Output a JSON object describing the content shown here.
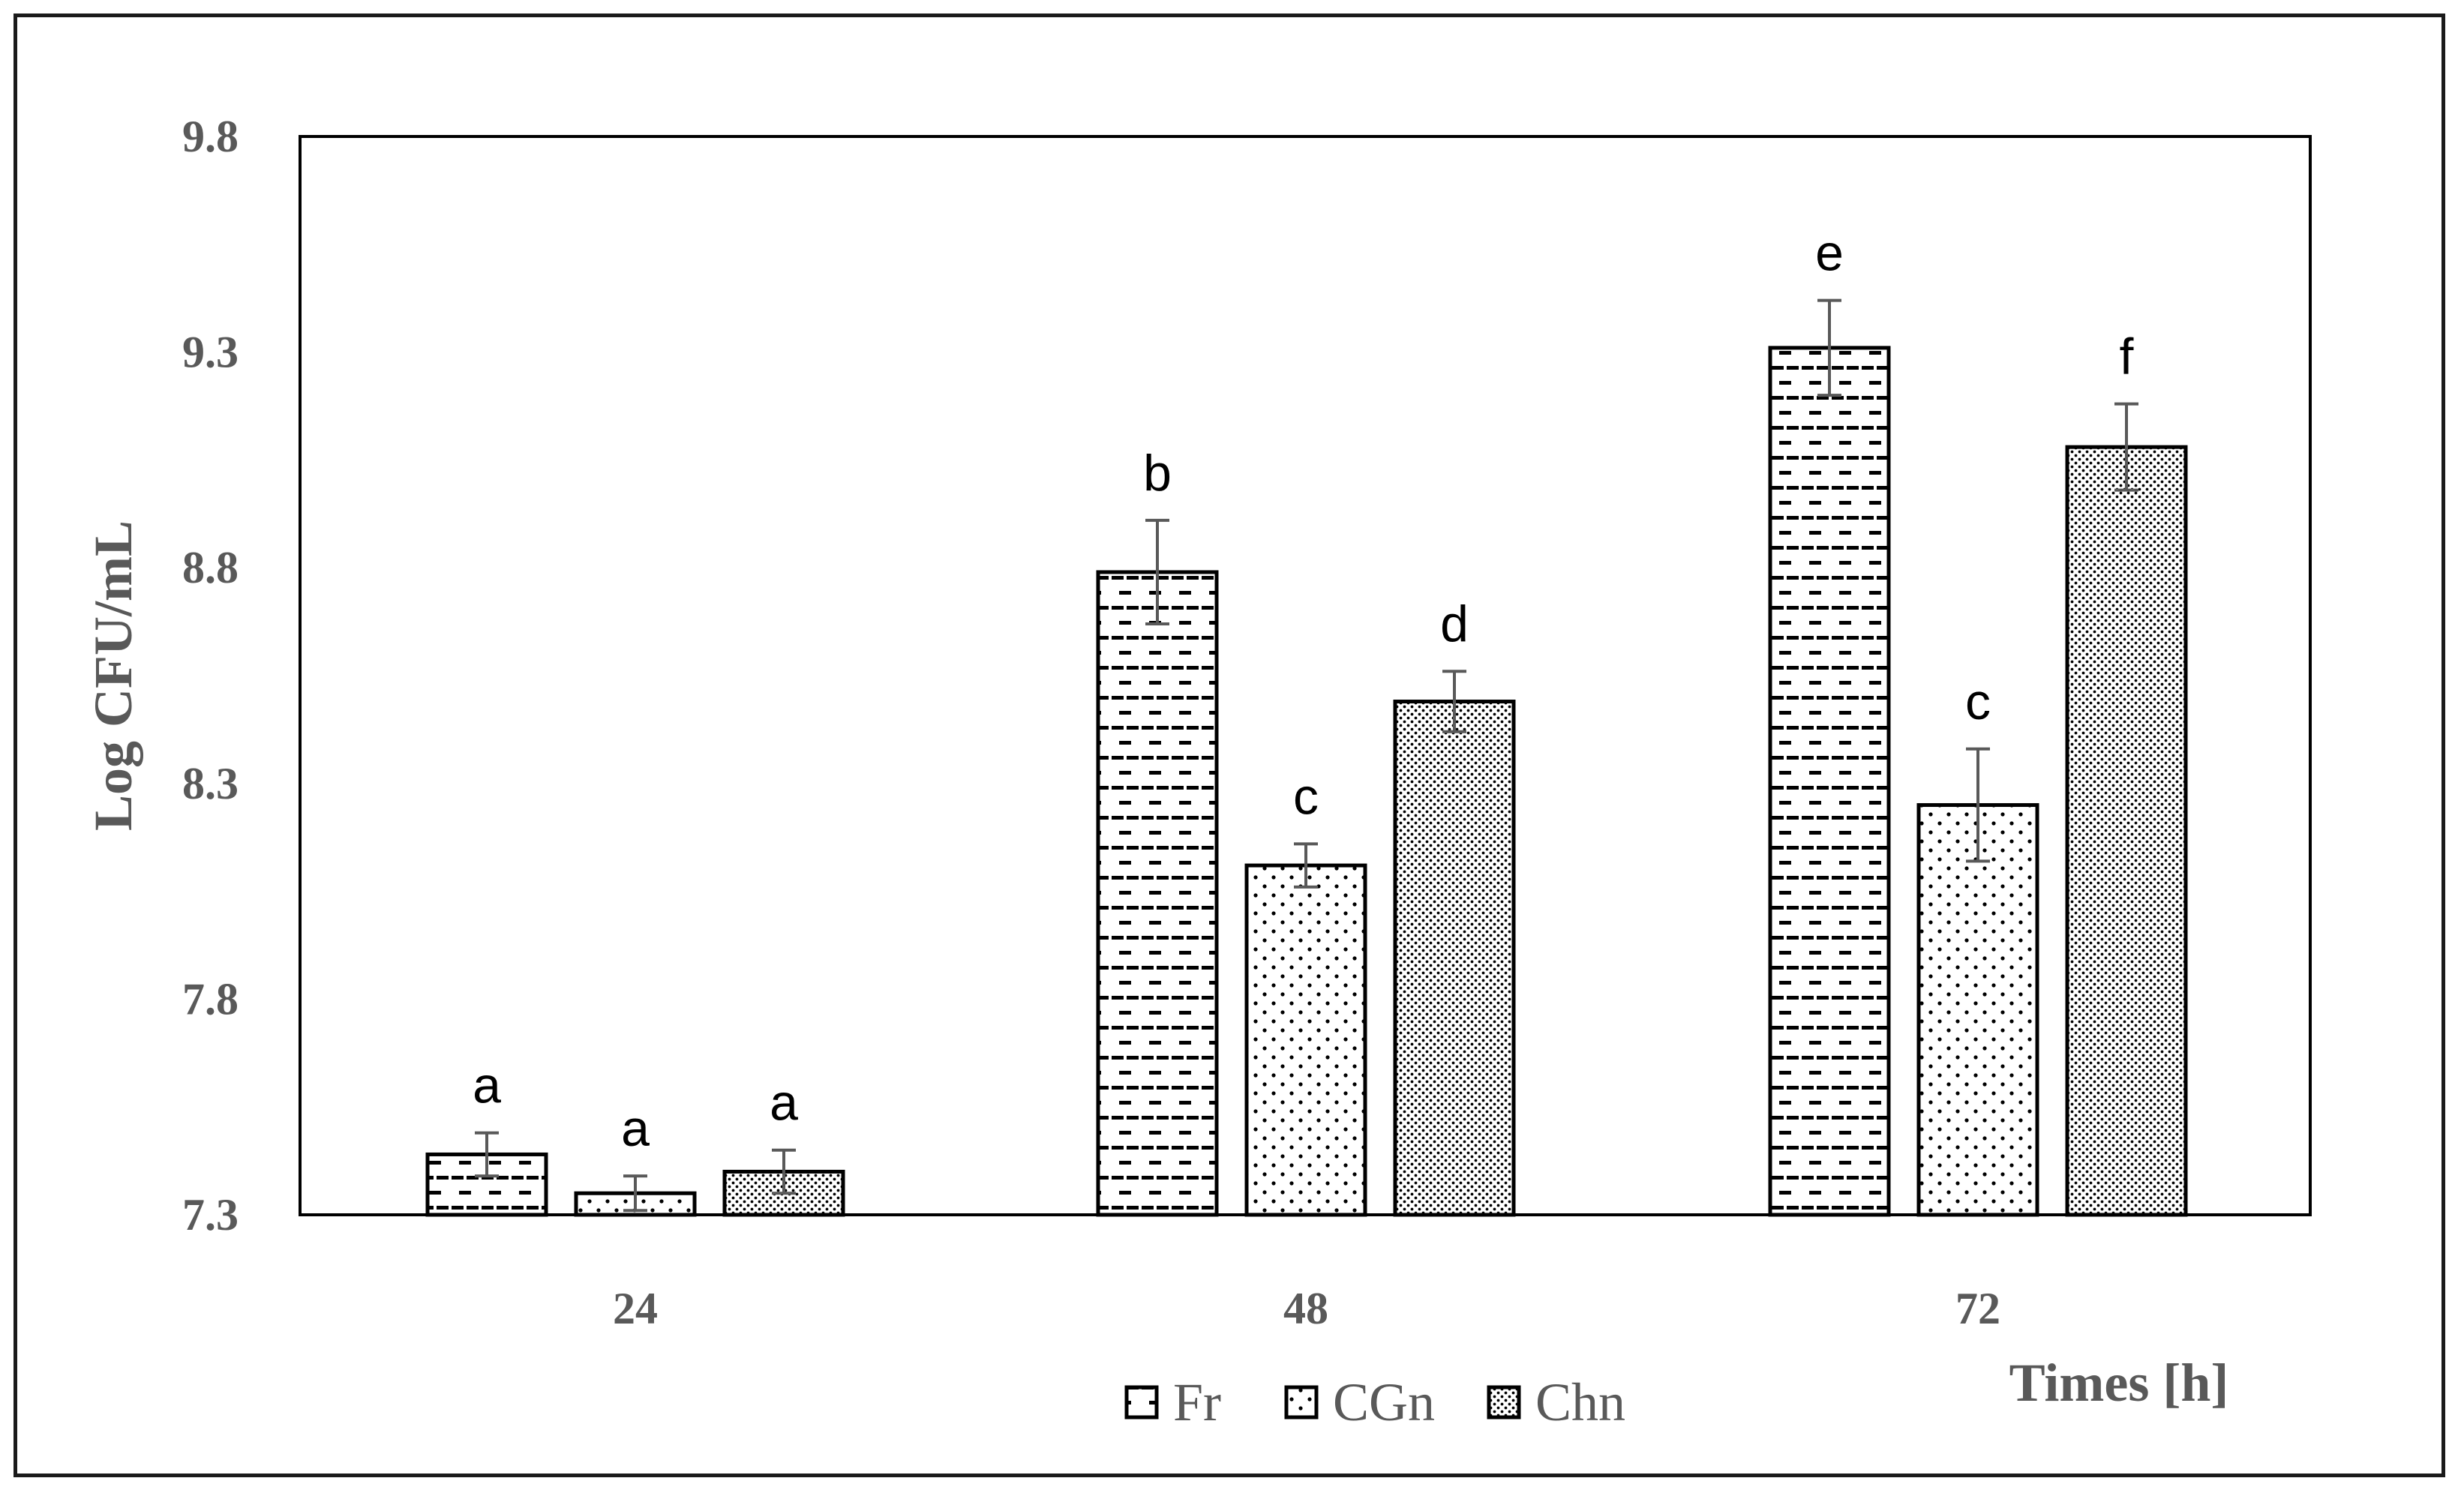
{
  "chart_data": {
    "type": "bar",
    "categories": [
      "24",
      "48",
      "72"
    ],
    "series": [
      {
        "name": "Fr",
        "pattern": "dashes",
        "values": [
          7.44,
          8.79,
          9.31
        ],
        "errors": [
          0.05,
          0.12,
          0.11
        ],
        "letters": [
          "a",
          "b",
          "e"
        ]
      },
      {
        "name": "CGn",
        "pattern": "dots",
        "values": [
          7.35,
          8.11,
          8.25
        ],
        "errors": [
          0.04,
          0.05,
          0.13
        ],
        "letters": [
          "a",
          "c",
          "c"
        ]
      },
      {
        "name": "Chn",
        "pattern": "fine-dots",
        "values": [
          7.4,
          8.49,
          9.08
        ],
        "errors": [
          0.05,
          0.07,
          0.1
        ],
        "letters": [
          "a",
          "d",
          "f"
        ]
      }
    ],
    "xlabel": "Times [h]",
    "ylabel": "Log CFU/mL",
    "ylim": [
      7.3,
      9.8
    ],
    "yticks": [
      "7.3",
      "7.8",
      "8.3",
      "8.8",
      "9.3",
      "9.8"
    ],
    "grid": false,
    "legend_position": "bottom-center",
    "colors": {
      "bar_stroke": "#000000",
      "text": "#595959",
      "error_bar": "#595959"
    }
  }
}
